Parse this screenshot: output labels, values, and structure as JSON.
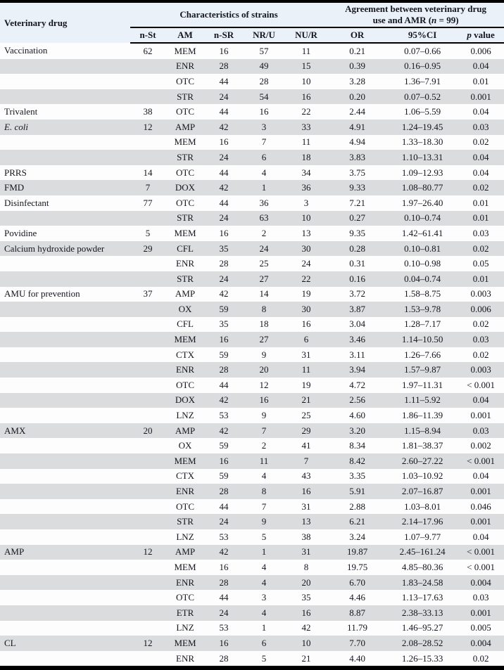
{
  "colors": {
    "header_bg": "#eaf1f9",
    "row_bg": "#fdfdfe",
    "row_alt_bg": "#dadcdd",
    "rule_color": "#000000",
    "text_color": "#15151f"
  },
  "table": {
    "header": {
      "veterinary_drug": "Veterinary drug",
      "characteristics_group": "Characteristics of strains",
      "agreement_line1": "Agreement between veterinary drug",
      "agreement_line2_pre": "use and AMR (",
      "agreement_line2_italic": "n",
      "agreement_line2_post": " = 99)"
    },
    "subheaders": {
      "n_st": "n-St",
      "am": "AM",
      "n_sr": "n-SR",
      "nr_u": "NR/U",
      "nu_r": "NU/R",
      "or": "OR",
      "ci": "95%CI",
      "p_italic": "p",
      "p_rest": " value"
    },
    "rows": [
      {
        "drug": "Vaccination",
        "drug_italic": false,
        "n_st": "62",
        "am": "MEM",
        "n_sr": "16",
        "nr_u": "57",
        "nu_r": "11",
        "or": "0.21",
        "ci": "0.07–0.66",
        "p": "0.006"
      },
      {
        "drug": "",
        "drug_italic": false,
        "n_st": "",
        "am": "ENR",
        "n_sr": "28",
        "nr_u": "49",
        "nu_r": "15",
        "or": "0.39",
        "ci": "0.16–0.95",
        "p": "0.04"
      },
      {
        "drug": "",
        "drug_italic": false,
        "n_st": "",
        "am": "OTC",
        "n_sr": "44",
        "nr_u": "28",
        "nu_r": "10",
        "or": "3.28",
        "ci": "1.36–7.91",
        "p": "0.01"
      },
      {
        "drug": "",
        "drug_italic": false,
        "n_st": "",
        "am": "STR",
        "n_sr": "24",
        "nr_u": "54",
        "nu_r": "16",
        "or": "0.20",
        "ci": "0.07–0.52",
        "p": "0.001"
      },
      {
        "drug": "Trivalent",
        "drug_italic": false,
        "n_st": "38",
        "am": "OTC",
        "n_sr": "44",
        "nr_u": "16",
        "nu_r": "22",
        "or": "2.44",
        "ci": "1.06–5.59",
        "p": "0.04"
      },
      {
        "drug": "E. coli",
        "drug_italic": true,
        "n_st": "12",
        "am": "AMP",
        "n_sr": "42",
        "nr_u": "3",
        "nu_r": "33",
        "or": "4.91",
        "ci": "1.24–19.45",
        "p": "0.03"
      },
      {
        "drug": "",
        "drug_italic": false,
        "n_st": "",
        "am": "MEM",
        "n_sr": "16",
        "nr_u": "7",
        "nu_r": "11",
        "or": "4.94",
        "ci": "1.33–18.30",
        "p": "0.02"
      },
      {
        "drug": "",
        "drug_italic": false,
        "n_st": "",
        "am": "STR",
        "n_sr": "24",
        "nr_u": "6",
        "nu_r": "18",
        "or": "3.83",
        "ci": "1.10–13.31",
        "p": "0.04"
      },
      {
        "drug": "PRRS",
        "drug_italic": false,
        "n_st": "14",
        "am": "OTC",
        "n_sr": "44",
        "nr_u": "4",
        "nu_r": "34",
        "or": "3.75",
        "ci": "1.09–12.93",
        "p": "0.04"
      },
      {
        "drug": "FMD",
        "drug_italic": false,
        "n_st": "7",
        "am": "DOX",
        "n_sr": "42",
        "nr_u": "1",
        "nu_r": "36",
        "or": "9.33",
        "ci": "1.08–80.77",
        "p": "0.02"
      },
      {
        "drug": "Disinfectant",
        "drug_italic": false,
        "n_st": "77",
        "am": "OTC",
        "n_sr": "44",
        "nr_u": "36",
        "nu_r": "3",
        "or": "7.21",
        "ci": "1.97–26.40",
        "p": "0.01"
      },
      {
        "drug": "",
        "drug_italic": false,
        "n_st": "",
        "am": "STR",
        "n_sr": "24",
        "nr_u": "63",
        "nu_r": "10",
        "or": "0.27",
        "ci": "0.10–0.74",
        "p": "0.01"
      },
      {
        "drug": "Povidine",
        "drug_italic": false,
        "n_st": "5",
        "am": "MEM",
        "n_sr": "16",
        "nr_u": "2",
        "nu_r": "13",
        "or": "9.35",
        "ci": "1.42–61.41",
        "p": "0.03"
      },
      {
        "drug": "Calcium hydroxide powder",
        "drug_italic": false,
        "n_st": "29",
        "am": "CFL",
        "n_sr": "35",
        "nr_u": "24",
        "nu_r": "30",
        "or": "0.28",
        "ci": "0.10–0.81",
        "p": "0.02"
      },
      {
        "drug": "",
        "drug_italic": false,
        "n_st": "",
        "am": "ENR",
        "n_sr": "28",
        "nr_u": "25",
        "nu_r": "24",
        "or": "0.31",
        "ci": "0.10–0.98",
        "p": "0.05"
      },
      {
        "drug": "",
        "drug_italic": false,
        "n_st": "",
        "am": "STR",
        "n_sr": "24",
        "nr_u": "27",
        "nu_r": "22",
        "or": "0.16",
        "ci": "0.04–0.74",
        "p": "0.01"
      },
      {
        "drug": "AMU for prevention",
        "drug_italic": false,
        "n_st": "37",
        "am": "AMP",
        "n_sr": "42",
        "nr_u": "14",
        "nu_r": "19",
        "or": "3.72",
        "ci": "1.58–8.75",
        "p": "0.003"
      },
      {
        "drug": "",
        "drug_italic": false,
        "n_st": "",
        "am": "OX",
        "n_sr": "59",
        "nr_u": "8",
        "nu_r": "30",
        "or": "3.87",
        "ci": "1.53–9.78",
        "p": "0.006"
      },
      {
        "drug": "",
        "drug_italic": false,
        "n_st": "",
        "am": "CFL",
        "n_sr": "35",
        "nr_u": "18",
        "nu_r": "16",
        "or": "3.04",
        "ci": "1.28–7.17",
        "p": "0.02"
      },
      {
        "drug": "",
        "drug_italic": false,
        "n_st": "",
        "am": "MEM",
        "n_sr": "16",
        "nr_u": "27",
        "nu_r": "6",
        "or": "3.46",
        "ci": "1.14–10.50",
        "p": "0.03"
      },
      {
        "drug": "",
        "drug_italic": false,
        "n_st": "",
        "am": "CTX",
        "n_sr": "59",
        "nr_u": "9",
        "nu_r": "31",
        "or": "3.11",
        "ci": "1.26–7.66",
        "p": "0.02"
      },
      {
        "drug": "",
        "drug_italic": false,
        "n_st": "",
        "am": "ENR",
        "n_sr": "28",
        "nr_u": "20",
        "nu_r": "11",
        "or": "3.94",
        "ci": "1.57–9.87",
        "p": "0.003"
      },
      {
        "drug": "",
        "drug_italic": false,
        "n_st": "",
        "am": "OTC",
        "n_sr": "44",
        "nr_u": "12",
        "nu_r": "19",
        "or": "4.72",
        "ci": "1.97–11.31",
        "p": "< 0.001"
      },
      {
        "drug": "",
        "drug_italic": false,
        "n_st": "",
        "am": "DOX",
        "n_sr": "42",
        "nr_u": "16",
        "nu_r": "21",
        "or": "2.56",
        "ci": "1.11–5.92",
        "p": "0.04"
      },
      {
        "drug": "",
        "drug_italic": false,
        "n_st": "",
        "am": "LNZ",
        "n_sr": "53",
        "nr_u": "9",
        "nu_r": "25",
        "or": "4.60",
        "ci": "1.86–11.39",
        "p": "0.001"
      },
      {
        "drug": "AMX",
        "drug_italic": false,
        "n_st": "20",
        "am": "AMP",
        "n_sr": "42",
        "nr_u": "7",
        "nu_r": "29",
        "or": "3.20",
        "ci": "1.15–8.94",
        "p": "0.03"
      },
      {
        "drug": "",
        "drug_italic": false,
        "n_st": "",
        "am": "OX",
        "n_sr": "59",
        "nr_u": "2",
        "nu_r": "41",
        "or": "8.34",
        "ci": "1.81–38.37",
        "p": "0.002"
      },
      {
        "drug": "",
        "drug_italic": false,
        "n_st": "",
        "am": "MEM",
        "n_sr": "16",
        "nr_u": "11",
        "nu_r": "7",
        "or": "8.42",
        "ci": "2.60–27.22",
        "p": "< 0.001"
      },
      {
        "drug": "",
        "drug_italic": false,
        "n_st": "",
        "am": "CTX",
        "n_sr": "59",
        "nr_u": "4",
        "nu_r": "43",
        "or": "3.35",
        "ci": "1.03–10.92",
        "p": "0.04"
      },
      {
        "drug": "",
        "drug_italic": false,
        "n_st": "",
        "am": "ENR",
        "n_sr": "28",
        "nr_u": "8",
        "nu_r": "16",
        "or": "5.91",
        "ci": "2.07–16.87",
        "p": "0.001"
      },
      {
        "drug": "",
        "drug_italic": false,
        "n_st": "",
        "am": "OTC",
        "n_sr": "44",
        "nr_u": "7",
        "nu_r": "31",
        "or": "2.88",
        "ci": "1.03–8.01",
        "p": "0.046"
      },
      {
        "drug": "",
        "drug_italic": false,
        "n_st": "",
        "am": "STR",
        "n_sr": "24",
        "nr_u": "9",
        "nu_r": "13",
        "or": "6.21",
        "ci": "2.14–17.96",
        "p": "0.001"
      },
      {
        "drug": "",
        "drug_italic": false,
        "n_st": "",
        "am": "LNZ",
        "n_sr": "53",
        "nr_u": "5",
        "nu_r": "38",
        "or": "3.24",
        "ci": "1.07–9.77",
        "p": "0.04"
      },
      {
        "drug": "AMP",
        "drug_italic": false,
        "n_st": "12",
        "am": "AMP",
        "n_sr": "42",
        "nr_u": "1",
        "nu_r": "31",
        "or": "19.87",
        "ci": "2.45–161.24",
        "p": "< 0.001"
      },
      {
        "drug": "",
        "drug_italic": false,
        "n_st": "",
        "am": "MEM",
        "n_sr": "16",
        "nr_u": "4",
        "nu_r": "8",
        "or": "19.75",
        "ci": "4.85–80.36",
        "p": "< 0.001"
      },
      {
        "drug": "",
        "drug_italic": false,
        "n_st": "",
        "am": "ENR",
        "n_sr": "28",
        "nr_u": "4",
        "nu_r": "20",
        "or": "6.70",
        "ci": "1.83–24.58",
        "p": "0.004"
      },
      {
        "drug": "",
        "drug_italic": false,
        "n_st": "",
        "am": "OTC",
        "n_sr": "44",
        "nr_u": "3",
        "nu_r": "35",
        "or": "4.46",
        "ci": "1.13–17.63",
        "p": "0.03"
      },
      {
        "drug": "",
        "drug_italic": false,
        "n_st": "",
        "am": "ETR",
        "n_sr": "24",
        "nr_u": "4",
        "nu_r": "16",
        "or": "8.87",
        "ci": "2.38–33.13",
        "p": "0.001"
      },
      {
        "drug": "",
        "drug_italic": false,
        "n_st": "",
        "am": "LNZ",
        "n_sr": "53",
        "nr_u": "1",
        "nu_r": "42",
        "or": "11.79",
        "ci": "1.46–95.27",
        "p": "0.005"
      },
      {
        "drug": "CL",
        "drug_italic": false,
        "n_st": "12",
        "am": "MEM",
        "n_sr": "16",
        "nr_u": "6",
        "nu_r": "10",
        "or": "7.70",
        "ci": "2.08–28.52",
        "p": "0.004"
      },
      {
        "drug": "",
        "drug_italic": false,
        "n_st": "",
        "am": "ENR",
        "n_sr": "28",
        "nr_u": "5",
        "nu_r": "21",
        "or": "4.40",
        "ci": "1.26–15.33",
        "p": "0.02"
      }
    ]
  }
}
